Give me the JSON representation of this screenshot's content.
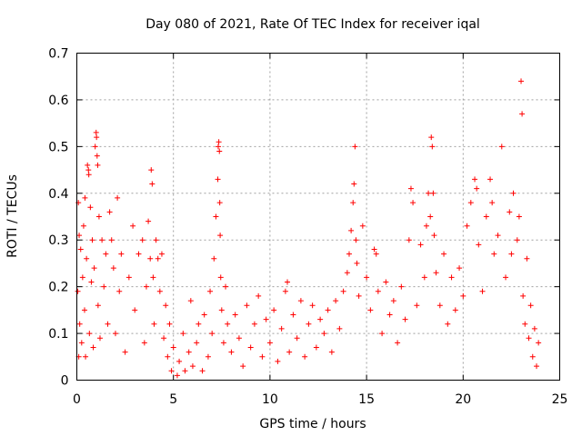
{
  "chart_data": {
    "type": "scatter",
    "title": "Day 080 of 2021, Rate Of TEC Index for receiver iqal",
    "xlabel": "GPS time / hours",
    "ylabel": "ROTI / TECUs",
    "xlim": [
      0,
      25
    ],
    "ylim": [
      0,
      0.7
    ],
    "xticks": [
      "0",
      "5",
      "10",
      "15",
      "20",
      "25"
    ],
    "yticks": [
      "0",
      "0.1",
      "0.2",
      "0.3",
      "0.4",
      "0.5",
      "0.6",
      "0.7"
    ],
    "grid": true,
    "marker": "+",
    "color": "#ff0000",
    "series": [
      {
        "name": "ROTI",
        "points": [
          [
            0.05,
            0.19
          ],
          [
            0.08,
            0.38
          ],
          [
            0.1,
            0.05
          ],
          [
            0.12,
            0.31
          ],
          [
            0.15,
            0.12
          ],
          [
            0.2,
            0.28
          ],
          [
            0.25,
            0.08
          ],
          [
            0.3,
            0.22
          ],
          [
            0.35,
            0.33
          ],
          [
            0.4,
            0.15
          ],
          [
            0.42,
            0.39
          ],
          [
            0.45,
            0.05
          ],
          [
            0.5,
            0.26
          ],
          [
            0.55,
            0.46
          ],
          [
            0.6,
            0.45
          ],
          [
            0.62,
            0.44
          ],
          [
            0.65,
            0.1
          ],
          [
            0.7,
            0.37
          ],
          [
            0.75,
            0.21
          ],
          [
            0.8,
            0.3
          ],
          [
            0.85,
            0.07
          ],
          [
            0.9,
            0.24
          ],
          [
            0.95,
            0.5
          ],
          [
            1.0,
            0.53
          ],
          [
            1.02,
            0.52
          ],
          [
            1.05,
            0.48
          ],
          [
            1.08,
            0.46
          ],
          [
            1.1,
            0.16
          ],
          [
            1.15,
            0.35
          ],
          [
            1.2,
            0.09
          ],
          [
            1.3,
            0.3
          ],
          [
            1.4,
            0.2
          ],
          [
            1.5,
            0.27
          ],
          [
            1.6,
            0.12
          ],
          [
            1.7,
            0.36
          ],
          [
            1.8,
            0.3
          ],
          [
            1.9,
            0.24
          ],
          [
            2.0,
            0.1
          ],
          [
            2.1,
            0.39
          ],
          [
            2.2,
            0.19
          ],
          [
            2.3,
            0.27
          ],
          [
            2.5,
            0.06
          ],
          [
            2.7,
            0.22
          ],
          [
            2.9,
            0.33
          ],
          [
            3.0,
            0.15
          ],
          [
            3.2,
            0.27
          ],
          [
            3.4,
            0.3
          ],
          [
            3.5,
            0.08
          ],
          [
            3.6,
            0.2
          ],
          [
            3.7,
            0.34
          ],
          [
            3.8,
            0.26
          ],
          [
            3.85,
            0.45
          ],
          [
            3.9,
            0.42
          ],
          [
            3.95,
            0.22
          ],
          [
            4.0,
            0.12
          ],
          [
            4.1,
            0.3
          ],
          [
            4.2,
            0.26
          ],
          [
            4.3,
            0.19
          ],
          [
            4.4,
            0.27
          ],
          [
            4.5,
            0.09
          ],
          [
            4.6,
            0.16
          ],
          [
            4.7,
            0.05
          ],
          [
            4.8,
            0.12
          ],
          [
            4.9,
            0.02
          ],
          [
            5.0,
            0.07
          ],
          [
            5.2,
            0.01
          ],
          [
            5.3,
            0.04
          ],
          [
            5.5,
            0.1
          ],
          [
            5.6,
            0.02
          ],
          [
            5.8,
            0.06
          ],
          [
            5.9,
            0.17
          ],
          [
            6.0,
            0.03
          ],
          [
            6.2,
            0.08
          ],
          [
            6.3,
            0.12
          ],
          [
            6.5,
            0.02
          ],
          [
            6.6,
            0.14
          ],
          [
            6.8,
            0.05
          ],
          [
            6.9,
            0.19
          ],
          [
            7.0,
            0.1
          ],
          [
            7.1,
            0.26
          ],
          [
            7.2,
            0.35
          ],
          [
            7.3,
            0.43
          ],
          [
            7.32,
            0.5
          ],
          [
            7.35,
            0.51
          ],
          [
            7.38,
            0.49
          ],
          [
            7.4,
            0.38
          ],
          [
            7.42,
            0.31
          ],
          [
            7.45,
            0.22
          ],
          [
            7.5,
            0.15
          ],
          [
            7.6,
            0.08
          ],
          [
            7.7,
            0.2
          ],
          [
            7.8,
            0.12
          ],
          [
            8.0,
            0.06
          ],
          [
            8.2,
            0.14
          ],
          [
            8.4,
            0.09
          ],
          [
            8.6,
            0.03
          ],
          [
            8.8,
            0.16
          ],
          [
            9.0,
            0.07
          ],
          [
            9.2,
            0.12
          ],
          [
            9.4,
            0.18
          ],
          [
            9.6,
            0.05
          ],
          [
            9.8,
            0.13
          ],
          [
            10.0,
            0.08
          ],
          [
            10.2,
            0.15
          ],
          [
            10.4,
            0.04
          ],
          [
            10.6,
            0.11
          ],
          [
            10.8,
            0.19
          ],
          [
            10.9,
            0.21
          ],
          [
            11.0,
            0.06
          ],
          [
            11.2,
            0.14
          ],
          [
            11.4,
            0.09
          ],
          [
            11.6,
            0.17
          ],
          [
            11.8,
            0.05
          ],
          [
            12.0,
            0.12
          ],
          [
            12.2,
            0.16
          ],
          [
            12.4,
            0.07
          ],
          [
            12.6,
            0.13
          ],
          [
            12.8,
            0.1
          ],
          [
            13.0,
            0.15
          ],
          [
            13.2,
            0.06
          ],
          [
            13.4,
            0.17
          ],
          [
            13.6,
            0.11
          ],
          [
            13.8,
            0.19
          ],
          [
            14.0,
            0.23
          ],
          [
            14.1,
            0.27
          ],
          [
            14.2,
            0.32
          ],
          [
            14.3,
            0.38
          ],
          [
            14.35,
            0.42
          ],
          [
            14.4,
            0.5
          ],
          [
            14.45,
            0.3
          ],
          [
            14.5,
            0.25
          ],
          [
            14.6,
            0.18
          ],
          [
            14.8,
            0.33
          ],
          [
            15.0,
            0.22
          ],
          [
            15.2,
            0.15
          ],
          [
            15.4,
            0.28
          ],
          [
            15.5,
            0.27
          ],
          [
            15.6,
            0.19
          ],
          [
            15.8,
            0.1
          ],
          [
            16.0,
            0.21
          ],
          [
            16.2,
            0.14
          ],
          [
            16.4,
            0.17
          ],
          [
            16.6,
            0.08
          ],
          [
            16.8,
            0.2
          ],
          [
            17.0,
            0.13
          ],
          [
            17.2,
            0.3
          ],
          [
            17.3,
            0.41
          ],
          [
            17.4,
            0.38
          ],
          [
            17.6,
            0.16
          ],
          [
            17.8,
            0.29
          ],
          [
            18.0,
            0.22
          ],
          [
            18.1,
            0.33
          ],
          [
            18.2,
            0.4
          ],
          [
            18.3,
            0.35
          ],
          [
            18.35,
            0.52
          ],
          [
            18.4,
            0.5
          ],
          [
            18.45,
            0.4
          ],
          [
            18.5,
            0.31
          ],
          [
            18.6,
            0.23
          ],
          [
            18.8,
            0.16
          ],
          [
            19.0,
            0.27
          ],
          [
            19.2,
            0.12
          ],
          [
            19.4,
            0.22
          ],
          [
            19.6,
            0.15
          ],
          [
            19.8,
            0.24
          ],
          [
            20.0,
            0.18
          ],
          [
            20.2,
            0.33
          ],
          [
            20.4,
            0.38
          ],
          [
            20.6,
            0.43
          ],
          [
            20.7,
            0.41
          ],
          [
            20.8,
            0.29
          ],
          [
            21.0,
            0.19
          ],
          [
            21.2,
            0.35
          ],
          [
            21.4,
            0.43
          ],
          [
            21.5,
            0.38
          ],
          [
            21.6,
            0.27
          ],
          [
            21.8,
            0.31
          ],
          [
            22.0,
            0.5
          ],
          [
            22.2,
            0.22
          ],
          [
            22.4,
            0.36
          ],
          [
            22.5,
            0.27
          ],
          [
            22.6,
            0.4
          ],
          [
            22.8,
            0.3
          ],
          [
            22.9,
            0.35
          ],
          [
            23.0,
            0.64
          ],
          [
            23.05,
            0.57
          ],
          [
            23.1,
            0.18
          ],
          [
            23.2,
            0.12
          ],
          [
            23.3,
            0.26
          ],
          [
            23.4,
            0.09
          ],
          [
            23.5,
            0.16
          ],
          [
            23.6,
            0.05
          ],
          [
            23.7,
            0.11
          ],
          [
            23.8,
            0.03
          ],
          [
            23.9,
            0.08
          ]
        ]
      }
    ]
  }
}
